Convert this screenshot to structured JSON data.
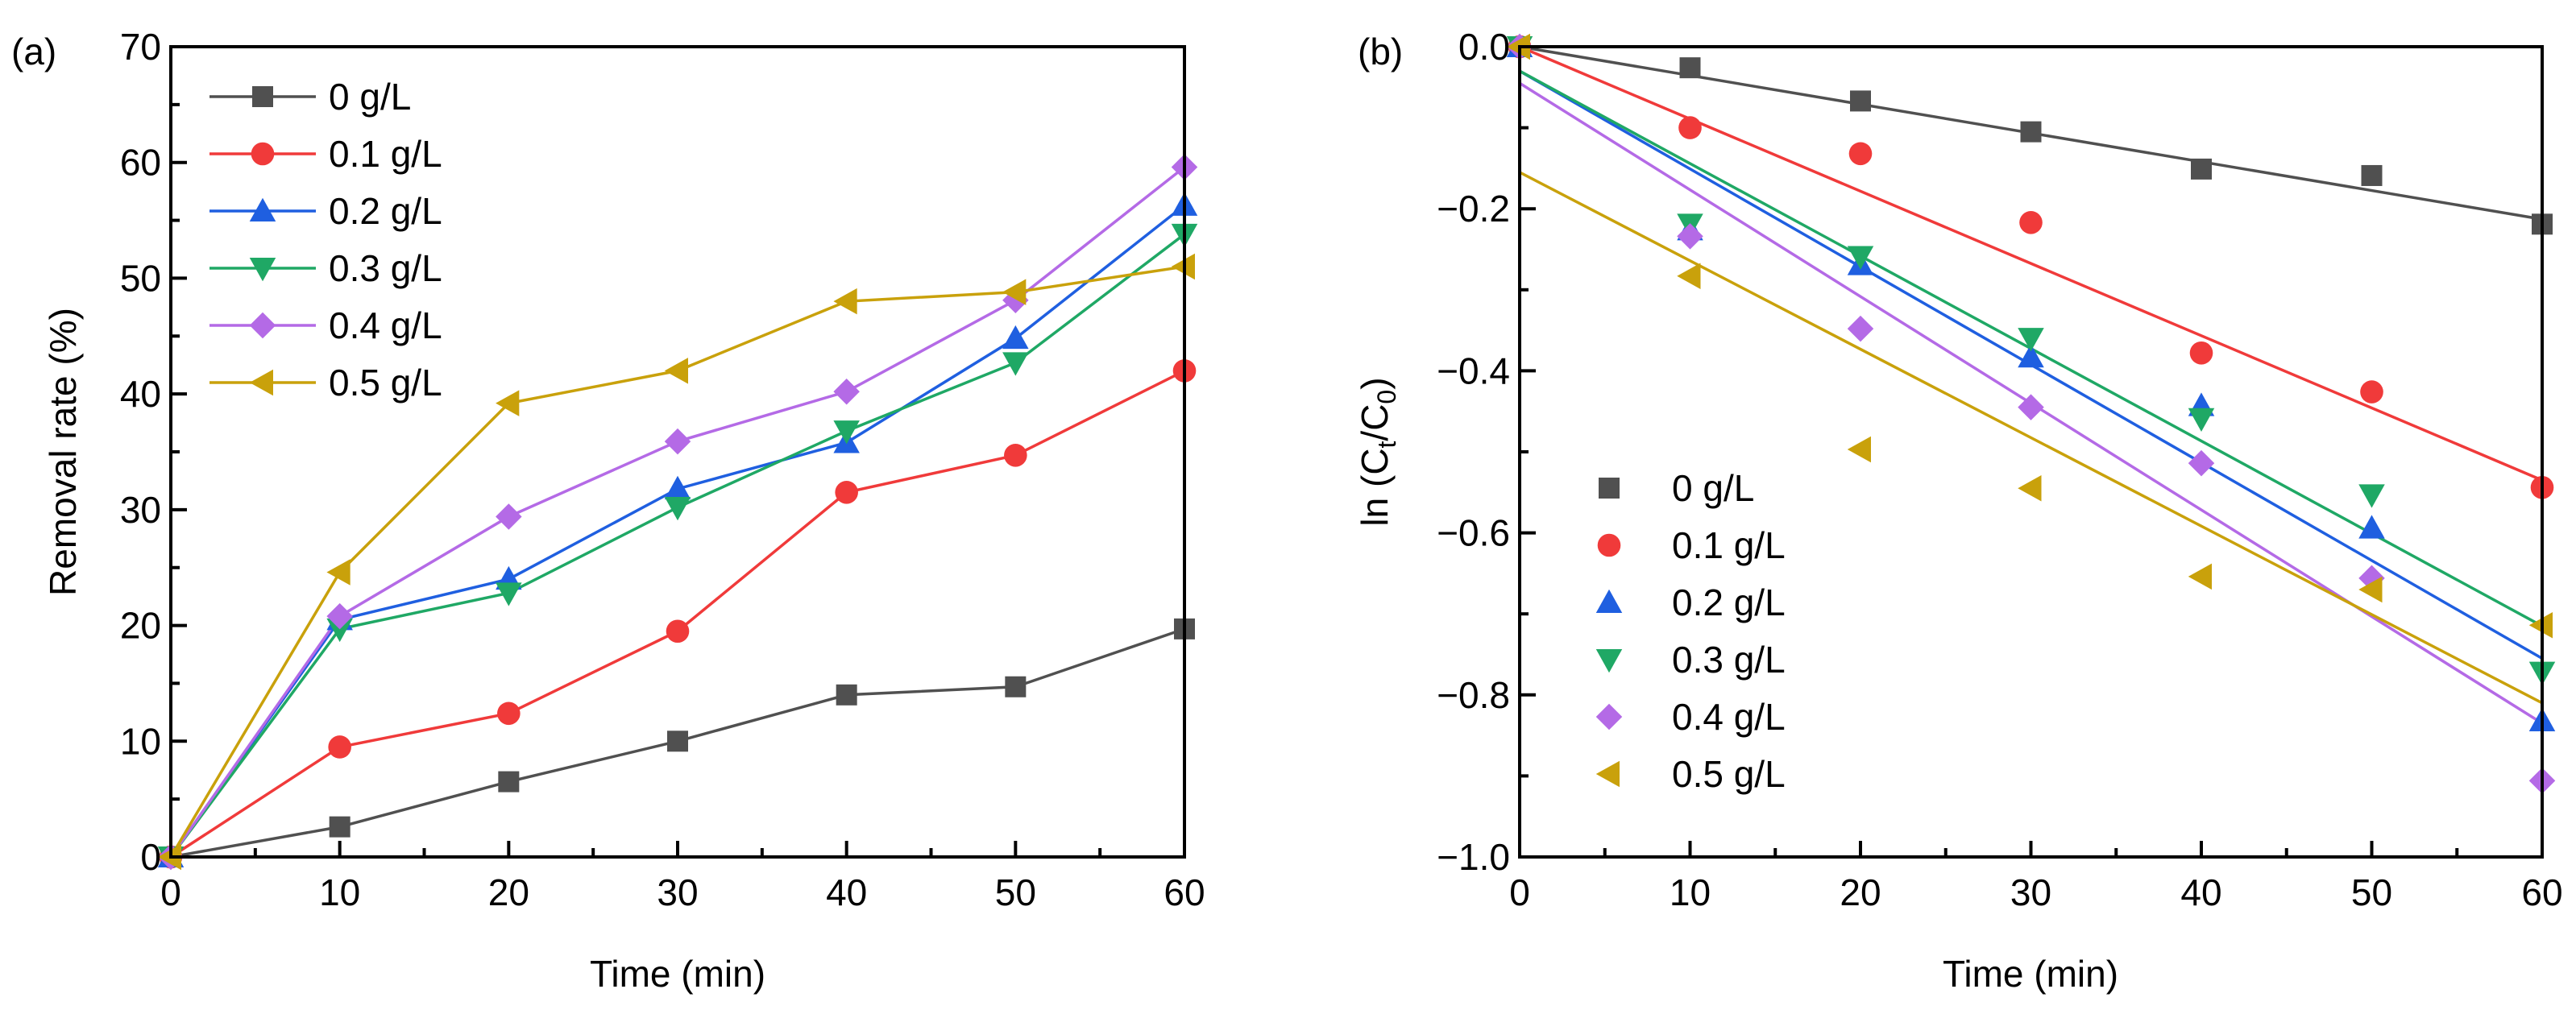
{
  "chart_data": [
    {
      "id": "a",
      "panel_label": "(a)",
      "type": "line",
      "xlabel": "Time (min)",
      "ylabel": "Removal rate (%)",
      "xlim": [
        0,
        60
      ],
      "ylim": [
        0,
        70
      ],
      "xticks": [
        0,
        10,
        20,
        30,
        40,
        50,
        60
      ],
      "yticks": [
        0,
        10,
        20,
        30,
        40,
        50,
        60,
        70
      ],
      "grid": false,
      "legend_position": "top-left",
      "x": [
        0,
        10,
        20,
        30,
        40,
        50,
        60
      ],
      "series": [
        {
          "name": "0 g/L",
          "color": "#505050",
          "marker": "square",
          "values": [
            0,
            2.6,
            6.5,
            10.0,
            14.0,
            14.7,
            19.7
          ]
        },
        {
          "name": "0.1 g/L",
          "color": "#f03a3a",
          "marker": "circle",
          "values": [
            0,
            9.5,
            12.4,
            19.5,
            31.5,
            34.7,
            42.0
          ]
        },
        {
          "name": "0.2 g/L",
          "color": "#1f5fe0",
          "marker": "triangle-up",
          "values": [
            0,
            20.5,
            24.0,
            31.8,
            35.8,
            44.8,
            56.3
          ]
        },
        {
          "name": "0.3 g/L",
          "color": "#1fa865",
          "marker": "triangle-down",
          "values": [
            0,
            19.7,
            22.8,
            30.2,
            36.8,
            42.7,
            53.8
          ]
        },
        {
          "name": "0.4 g/L",
          "color": "#b46ae6",
          "marker": "diamond",
          "values": [
            0,
            20.8,
            29.4,
            35.9,
            40.2,
            48.1,
            59.6
          ]
        },
        {
          "name": "0.5 g/L",
          "color": "#c9a10b",
          "marker": "triangle-left",
          "values": [
            0,
            24.6,
            39.2,
            42.0,
            48.0,
            48.8,
            51.0
          ]
        }
      ]
    },
    {
      "id": "b",
      "panel_label": "(b)",
      "type": "scatter",
      "xlabel": "Time (min)",
      "ylabel_main": "ln (C",
      "ylabel_sub1": "t",
      "ylabel_mid": "/C",
      "ylabel_sub2": "0",
      "ylabel_end": ")",
      "xlim": [
        0,
        60
      ],
      "ylim": [
        -1.0,
        0.0
      ],
      "xticks": [
        0,
        10,
        20,
        30,
        40,
        50,
        60
      ],
      "yticks": [
        0.0,
        -0.2,
        -0.4,
        -0.6,
        -0.8,
        -1.0
      ],
      "ytick_labels": [
        "0.0",
        "−0.2",
        "−0.4",
        "−0.6",
        "−0.8",
        "−1.0"
      ],
      "grid": false,
      "legend_position": "bottom-left",
      "x": [
        0,
        10,
        20,
        30,
        40,
        50,
        60
      ],
      "series": [
        {
          "name": "0 g/L",
          "color": "#505050",
          "marker": "square",
          "values": [
            0,
            -0.026,
            -0.067,
            -0.105,
            -0.151,
            -0.159,
            -0.219
          ],
          "fit": [
            [
              0,
              0.0
            ],
            [
              60,
              -0.213
            ]
          ]
        },
        {
          "name": "0.1 g/L",
          "color": "#f03a3a",
          "marker": "circle",
          "values": [
            0,
            -0.1,
            -0.132,
            -0.217,
            -0.378,
            -0.426,
            -0.544
          ],
          "fit": [
            [
              0,
              0.0
            ],
            [
              60,
              -0.535
            ]
          ]
        },
        {
          "name": "0.2 g/L",
          "color": "#1f5fe0",
          "marker": "triangle-up",
          "values": [
            0,
            -0.226,
            -0.269,
            -0.383,
            -0.443,
            -0.594,
            -0.832
          ],
          "fit": [
            [
              0,
              -0.03
            ],
            [
              60,
              -0.755
            ]
          ]
        },
        {
          "name": "0.3 g/L",
          "color": "#1fa865",
          "marker": "triangle-down",
          "values": [
            0,
            -0.219,
            -0.259,
            -0.36,
            -0.459,
            -0.553,
            -0.772
          ],
          "fit": [
            [
              0,
              -0.03
            ],
            [
              60,
              -0.715
            ]
          ]
        },
        {
          "name": "0.4 g/L",
          "color": "#b46ae6",
          "marker": "diamond",
          "values": [
            0,
            -0.234,
            -0.348,
            -0.445,
            -0.514,
            -0.656,
            -0.906
          ],
          "fit": [
            [
              0,
              -0.045
            ],
            [
              60,
              -0.835
            ]
          ]
        },
        {
          "name": "0.5 g/L",
          "color": "#c9a10b",
          "marker": "triangle-left",
          "values": [
            0,
            -0.283,
            -0.497,
            -0.545,
            -0.654,
            -0.67,
            -0.714
          ],
          "fit": [
            [
              0,
              -0.155
            ],
            [
              60,
              -0.81
            ]
          ]
        }
      ]
    }
  ]
}
